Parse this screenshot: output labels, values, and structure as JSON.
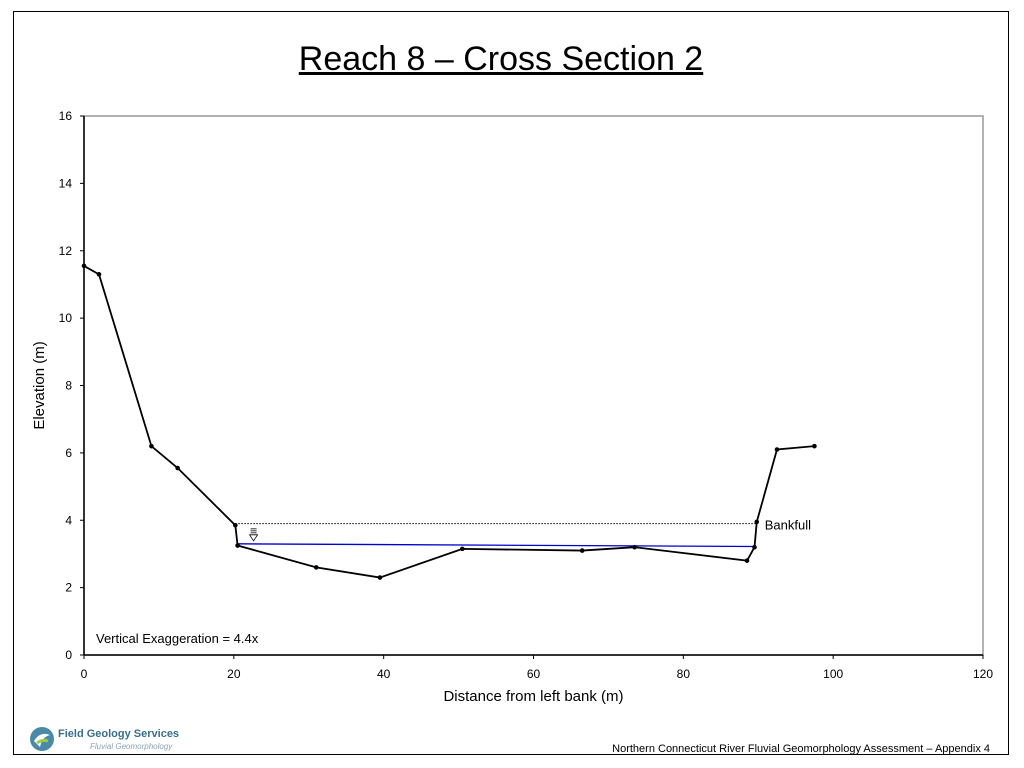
{
  "page": {
    "title": "Reach 8 – Cross Section 2",
    "footer": "Northern Connecticut River Fluvial Geomorphology Assessment – Appendix 4",
    "logo": {
      "name": "Field Geology Services",
      "tagline": "Fluvial Geomorphology"
    }
  },
  "chart_data": {
    "type": "line",
    "xlabel": "Distance from left bank (m)",
    "ylabel": "Elevation (m)",
    "xlim": [
      0,
      120
    ],
    "ylim": [
      0,
      16
    ],
    "xticks": [
      0,
      20,
      40,
      60,
      80,
      100,
      120
    ],
    "yticks": [
      0,
      2,
      4,
      6,
      8,
      10,
      12,
      14,
      16
    ],
    "grid": false,
    "series": [
      {
        "color": "#000000",
        "markers": true,
        "x": [
          0,
          2,
          9,
          12.5,
          20.2,
          20.5,
          31,
          39.5,
          50.5,
          66.5,
          73.5,
          88.5,
          89.5,
          89.8,
          92.5,
          97.5
        ],
        "y": [
          11.55,
          11.3,
          6.2,
          5.55,
          3.85,
          3.25,
          2.6,
          2.3,
          3.15,
          3.1,
          3.2,
          2.8,
          3.2,
          3.95,
          6.1,
          6.2
        ]
      }
    ],
    "bankfull": {
      "x": [
        20.2,
        89.8
      ],
      "y": 3.9,
      "label": "Bankfull",
      "color": "#000000"
    },
    "water_surface": {
      "x": [
        20.5,
        89.5
      ],
      "y": [
        3.3,
        3.22
      ],
      "color": "#0000cc"
    },
    "annotation": "Vertical Exaggeration = 4.4x"
  }
}
